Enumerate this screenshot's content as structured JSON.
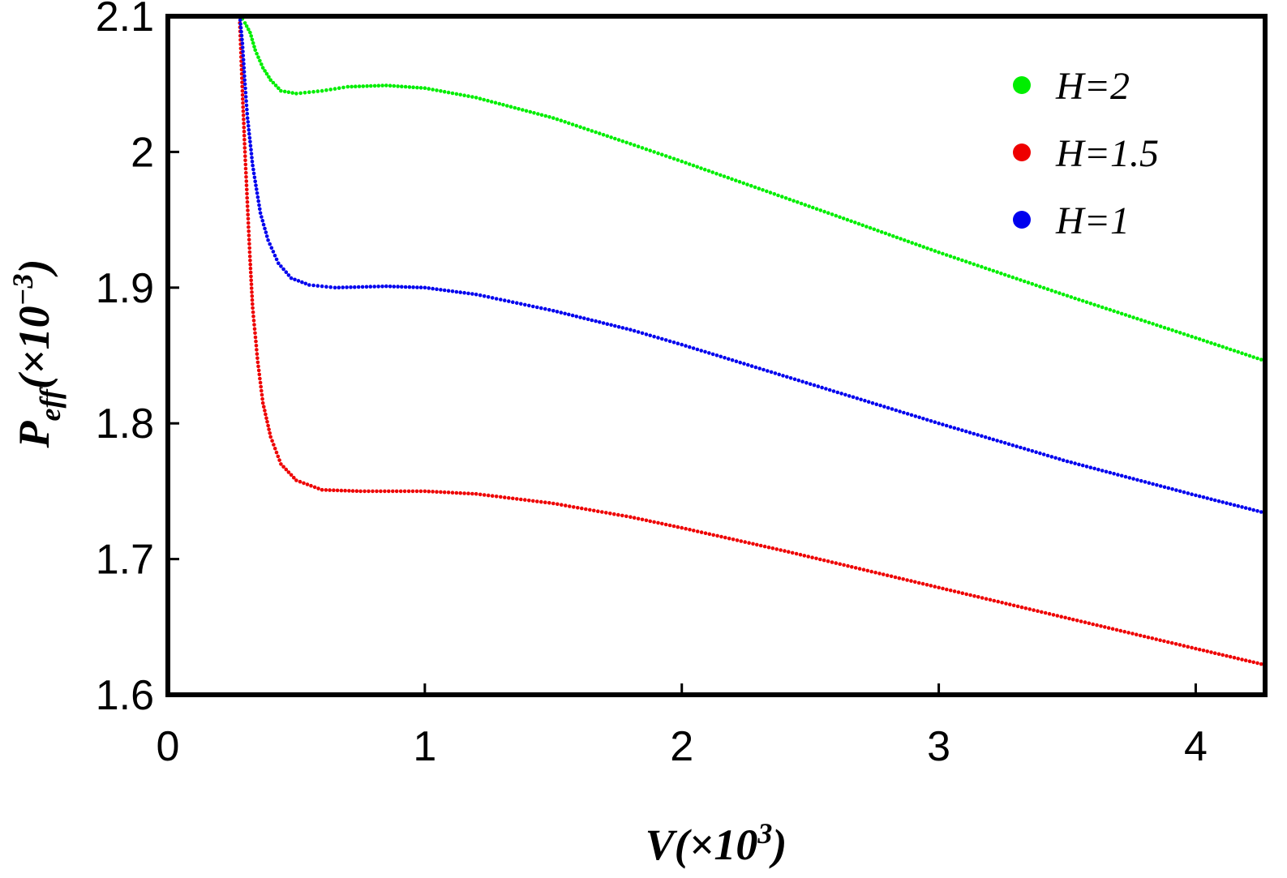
{
  "chart_data": {
    "type": "scatter",
    "xlabel": {
      "main": "V(×10",
      "sup": "3",
      "end": ")"
    },
    "ylabel": {
      "main": "P",
      "sub": "eff",
      "paren": "(×10",
      "sup": "−3",
      "end": ")"
    },
    "xlim": [
      0,
      4.27
    ],
    "ylim": [
      1.6,
      2.1
    ],
    "x_ticks": [
      0,
      1,
      2,
      3,
      4
    ],
    "x_tick_labels": [
      "0",
      "1",
      "2",
      "3",
      "4"
    ],
    "y_ticks": [
      1.6,
      1.7,
      1.8,
      1.9,
      2.0,
      2.1
    ],
    "y_tick_labels": [
      "1.6",
      "1.7",
      "1.8",
      "1.9",
      "2",
      "2.1"
    ],
    "grid": false,
    "legend_position": "top-right",
    "series": [
      {
        "name": "H=2",
        "color": "#00ee00",
        "points": [
          [
            0.28,
            2.101
          ],
          [
            0.3,
            2.095
          ],
          [
            0.32,
            2.088
          ],
          [
            0.34,
            2.075
          ],
          [
            0.37,
            2.062
          ],
          [
            0.4,
            2.053
          ],
          [
            0.44,
            2.045
          ],
          [
            0.5,
            2.043
          ],
          [
            0.6,
            2.045
          ],
          [
            0.7,
            2.048
          ],
          [
            0.85,
            2.049
          ],
          [
            1.0,
            2.047
          ],
          [
            1.2,
            2.04
          ],
          [
            1.5,
            2.025
          ],
          [
            1.8,
            2.006
          ],
          [
            2.0,
            1.993
          ],
          [
            2.3,
            1.973
          ],
          [
            2.6,
            1.953
          ],
          [
            3.0,
            1.926
          ],
          [
            3.5,
            1.894
          ],
          [
            4.0,
            1.863
          ],
          [
            4.27,
            1.846
          ]
        ]
      },
      {
        "name": "H=1.5",
        "color": "#ee0000",
        "points": [
          [
            0.28,
            2.095
          ],
          [
            0.285,
            2.07
          ],
          [
            0.29,
            2.045
          ],
          [
            0.3,
            2.0
          ],
          [
            0.31,
            1.96
          ],
          [
            0.32,
            1.92
          ],
          [
            0.33,
            1.885
          ],
          [
            0.35,
            1.845
          ],
          [
            0.37,
            1.815
          ],
          [
            0.4,
            1.79
          ],
          [
            0.44,
            1.77
          ],
          [
            0.5,
            1.758
          ],
          [
            0.6,
            1.751
          ],
          [
            0.75,
            1.75
          ],
          [
            1.0,
            1.75
          ],
          [
            1.2,
            1.748
          ],
          [
            1.5,
            1.741
          ],
          [
            1.8,
            1.731
          ],
          [
            2.0,
            1.723
          ],
          [
            2.4,
            1.706
          ],
          [
            2.8,
            1.688
          ],
          [
            3.2,
            1.67
          ],
          [
            3.6,
            1.652
          ],
          [
            4.0,
            1.634
          ],
          [
            4.27,
            1.622
          ]
        ]
      },
      {
        "name": "H=1",
        "color": "#0000ee",
        "points": [
          [
            0.28,
            2.1
          ],
          [
            0.29,
            2.08
          ],
          [
            0.3,
            2.05
          ],
          [
            0.31,
            2.025
          ],
          [
            0.33,
            1.99
          ],
          [
            0.36,
            1.955
          ],
          [
            0.39,
            1.935
          ],
          [
            0.43,
            1.918
          ],
          [
            0.48,
            1.907
          ],
          [
            0.55,
            1.902
          ],
          [
            0.65,
            1.9
          ],
          [
            0.85,
            1.901
          ],
          [
            1.0,
            1.9
          ],
          [
            1.2,
            1.895
          ],
          [
            1.5,
            1.883
          ],
          [
            1.8,
            1.869
          ],
          [
            2.0,
            1.858
          ],
          [
            2.5,
            1.829
          ],
          [
            3.0,
            1.8
          ],
          [
            3.5,
            1.772
          ],
          [
            4.0,
            1.747
          ],
          [
            4.27,
            1.734
          ]
        ]
      }
    ],
    "legend_order": [
      0,
      1,
      2
    ]
  }
}
